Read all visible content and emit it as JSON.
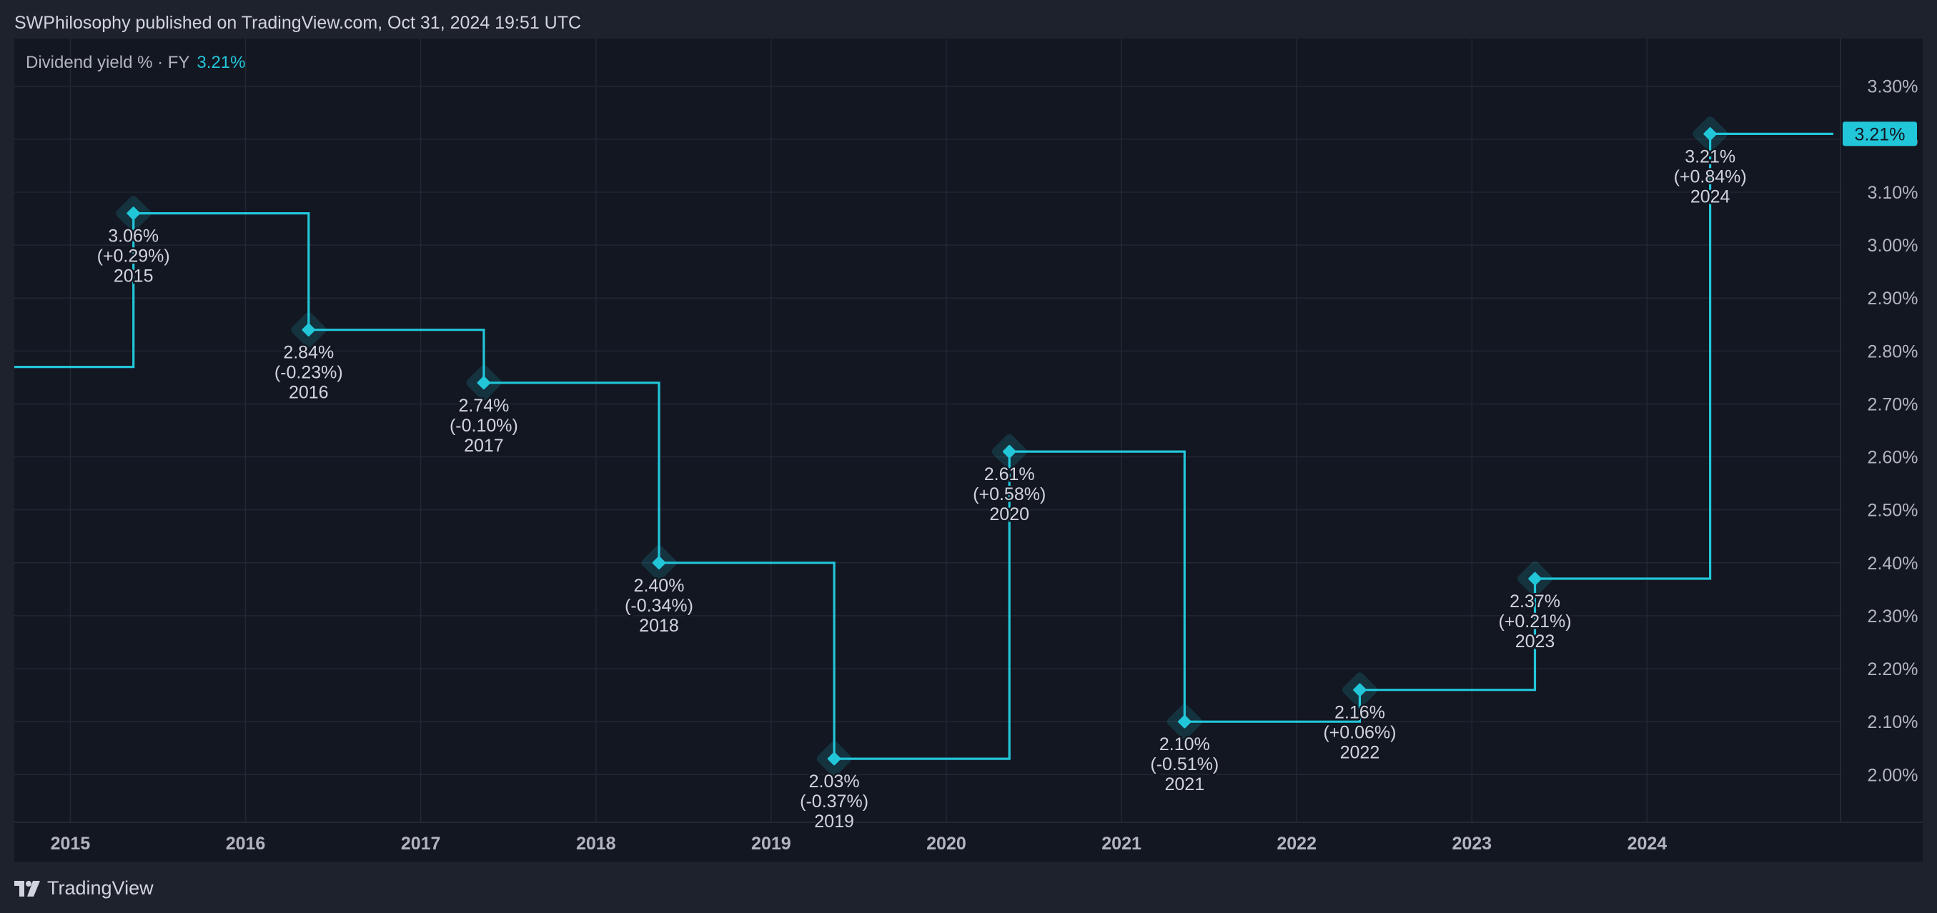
{
  "header": {
    "published": "SWPhilosophy published on TradingView.com, Oct 31, 2024 19:51 UTC"
  },
  "legend": {
    "label": "Dividend yield % · FY",
    "value": "3.21%"
  },
  "footer": {
    "brand": "TradingView",
    "logo_icon": "tradingview-logo-icon"
  },
  "colors": {
    "accent": "#22c6d9",
    "background": "#131722",
    "chrome": "#1e222d",
    "grid": "#232733",
    "text": "#d1d4dc",
    "axis_text": "#b2b5be"
  },
  "chart_data": {
    "type": "line",
    "style": "step",
    "title": "",
    "xlabel": "",
    "ylabel": "",
    "x_ticks": [
      "2015",
      "2016",
      "2017",
      "2018",
      "2019",
      "2020",
      "2021",
      "2022",
      "2023",
      "2024"
    ],
    "y_ticks": [
      2.0,
      2.1,
      2.2,
      2.3,
      2.4,
      2.5,
      2.6,
      2.7,
      2.8,
      2.9,
      3.0,
      3.1,
      3.2,
      3.3
    ],
    "y_tick_suffix": "%",
    "ylim": [
      1.91,
      3.39
    ],
    "grid": true,
    "start_value": 2.77,
    "last_value_label": "3.21%",
    "series": [
      {
        "points": [
          {
            "year": "2015",
            "x": 2015.36,
            "value": 3.06,
            "label": "3.06%",
            "change": "(+0.29%)"
          },
          {
            "year": "2016",
            "x": 2016.36,
            "value": 2.84,
            "label": "2.84%",
            "change": "(-0.23%)"
          },
          {
            "year": "2017",
            "x": 2017.36,
            "value": 2.74,
            "label": "2.74%",
            "change": "(-0.10%)"
          },
          {
            "year": "2018",
            "x": 2018.36,
            "value": 2.4,
            "label": "2.40%",
            "change": "(-0.34%)"
          },
          {
            "year": "2019",
            "x": 2019.36,
            "value": 2.03,
            "label": "2.03%",
            "change": "(-0.37%)"
          },
          {
            "year": "2020",
            "x": 2020.36,
            "value": 2.61,
            "label": "2.61%",
            "change": "(+0.58%)"
          },
          {
            "year": "2021",
            "x": 2021.36,
            "value": 2.1,
            "label": "2.10%",
            "change": "(-0.51%)"
          },
          {
            "year": "2022",
            "x": 2022.36,
            "value": 2.16,
            "label": "2.16%",
            "change": "(+0.06%)"
          },
          {
            "year": "2023",
            "x": 2023.36,
            "value": 2.37,
            "label": "2.37%",
            "change": "(+0.21%)"
          },
          {
            "year": "2024",
            "x": 2024.36,
            "value": 3.21,
            "label": "3.21%",
            "change": "(+0.84%)"
          }
        ]
      }
    ]
  }
}
